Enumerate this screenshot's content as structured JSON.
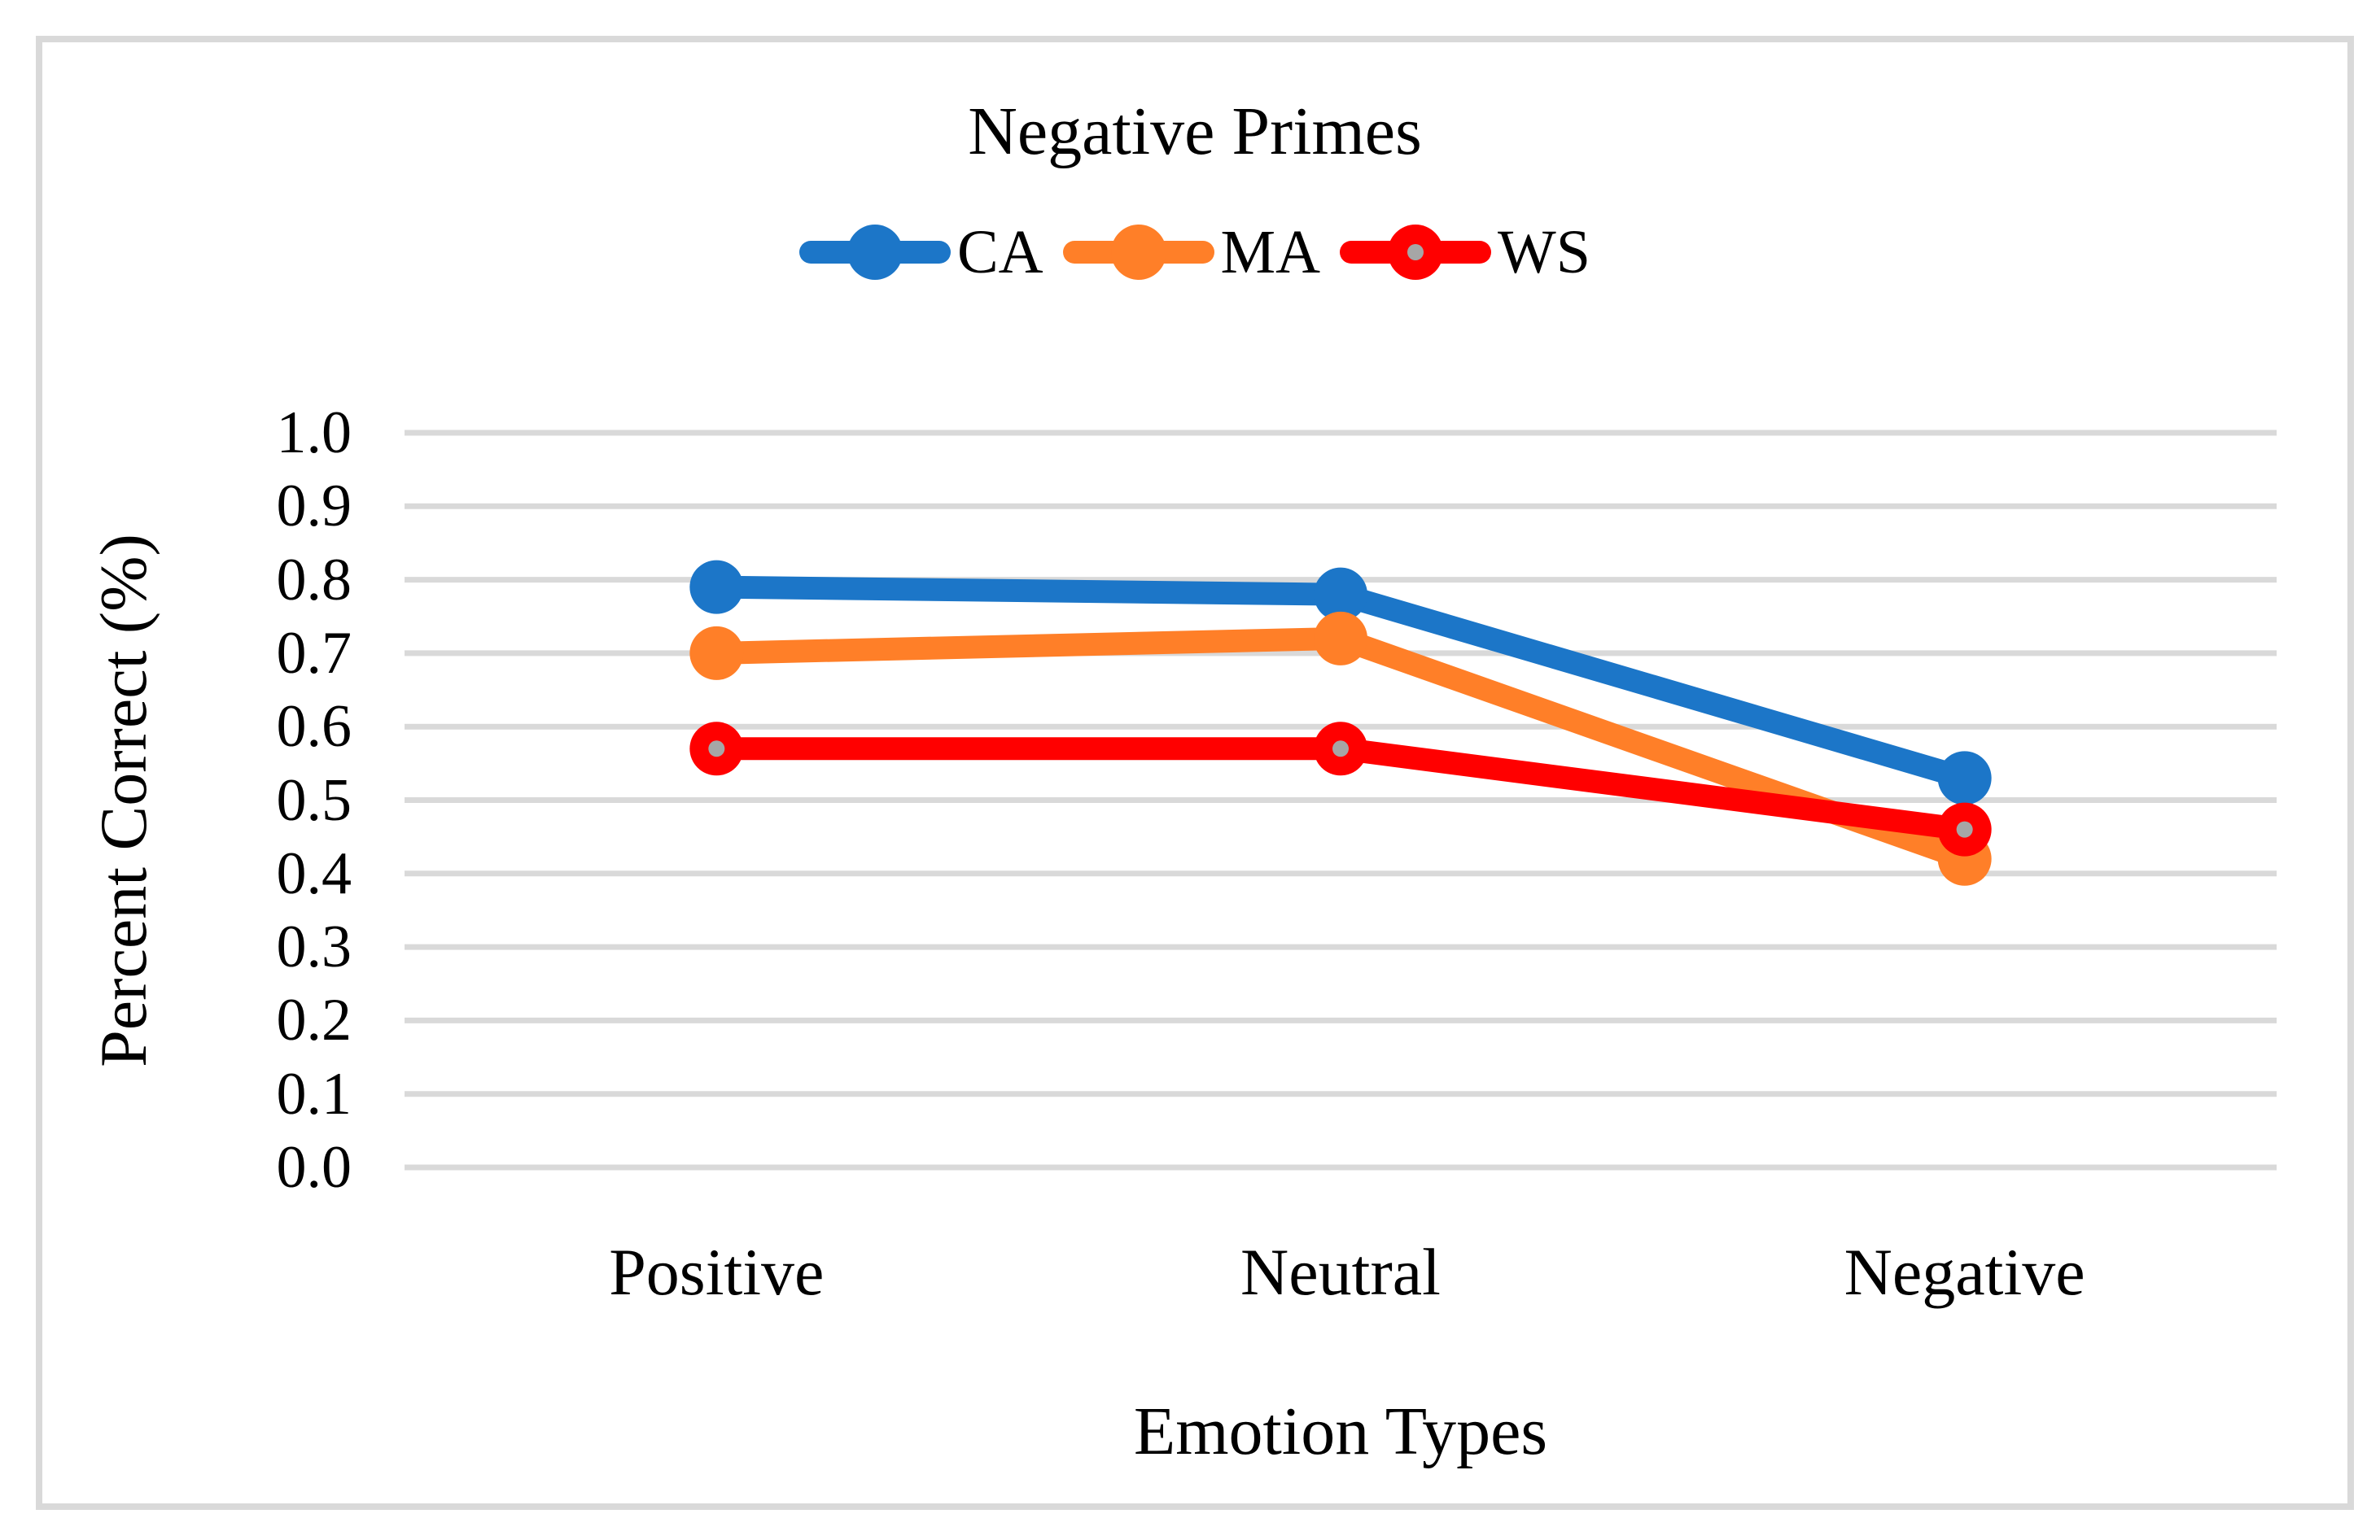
{
  "chart_data": {
    "type": "line",
    "title": "Negative Primes",
    "xlabel": "Emotion Types",
    "ylabel": "Percent Correct (%)",
    "categories": [
      "Positive",
      "Neutral",
      "Negative"
    ],
    "series": [
      {
        "name": "CA",
        "color": "#1C76C8",
        "marker": "circle",
        "marker_inner_dot": null,
        "values": [
          0.79,
          0.78,
          0.53
        ]
      },
      {
        "name": "MA",
        "color": "#FF7F28",
        "marker": "circle",
        "marker_inner_dot": null,
        "values": [
          0.7,
          0.72,
          0.42
        ]
      },
      {
        "name": "WS",
        "color": "#FF0000",
        "marker": "circle",
        "marker_inner_dot": "#A6A6A6",
        "values": [
          0.57,
          0.57,
          0.46
        ]
      }
    ],
    "ylim": [
      0.0,
      1.0
    ],
    "ytick_step": 0.1,
    "ytick_labels": [
      "0.0",
      "0.1",
      "0.2",
      "0.3",
      "0.4",
      "0.5",
      "0.6",
      "0.7",
      "0.8",
      "0.9",
      "1.0"
    ],
    "grid": "horizontal",
    "gridline_color": "#D9D9D9",
    "frame_color": "#D9D9D9",
    "legend_position": "top",
    "text_color": "#000000",
    "background_color": "#FFFFFF"
  }
}
